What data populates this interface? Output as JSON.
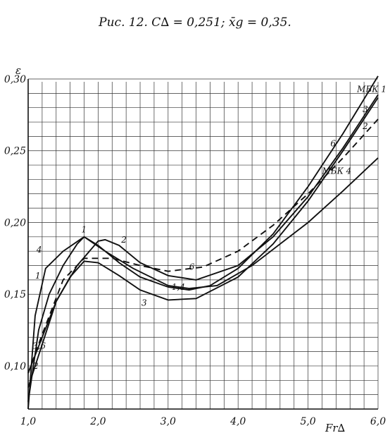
{
  "caption": "Рис. 12. C∆ = 0,251;  x̄g = 0,35.",
  "chart_data": {
    "type": "line",
    "xlabel": "Fr∆",
    "ylabel": "ε",
    "xlim": [
      1.0,
      6.0
    ],
    "ylim": [
      0.07,
      0.3
    ],
    "x_ticks": [
      1.0,
      2.0,
      3.0,
      4.0,
      5.0,
      6.0
    ],
    "x_tick_labels": [
      "1,0",
      "2,0",
      "3,0",
      "4,0",
      "5,0",
      "6,0"
    ],
    "y_ticks": [
      0.1,
      0.15,
      0.2,
      0.25,
      0.3
    ],
    "y_tick_labels": [
      "0,10",
      "0,15",
      "0,20",
      "0,25",
      "0,30"
    ],
    "grid": "on",
    "series": [
      {
        "name": "1",
        "dashed": false,
        "points": [
          [
            1.0,
            0.075
          ],
          [
            1.15,
            0.125
          ],
          [
            1.3,
            0.15
          ],
          [
            1.5,
            0.17
          ],
          [
            1.7,
            0.185
          ],
          [
            1.8,
            0.19
          ],
          [
            2.0,
            0.184
          ],
          [
            2.3,
            0.172
          ],
          [
            2.6,
            0.162
          ],
          [
            3.0,
            0.155
          ],
          [
            3.3,
            0.153
          ],
          [
            3.6,
            0.156
          ],
          [
            4.0,
            0.168
          ],
          [
            4.5,
            0.192
          ],
          [
            5.0,
            0.225
          ],
          [
            5.5,
            0.262
          ],
          [
            6.0,
            0.302
          ]
        ]
      },
      {
        "name": "2",
        "dashed": false,
        "points": [
          [
            1.0,
            0.085
          ],
          [
            1.2,
            0.115
          ],
          [
            1.4,
            0.145
          ],
          [
            1.7,
            0.17
          ],
          [
            2.0,
            0.187
          ],
          [
            2.1,
            0.188
          ],
          [
            2.3,
            0.184
          ],
          [
            2.6,
            0.172
          ],
          [
            3.0,
            0.163
          ],
          [
            3.4,
            0.16
          ],
          [
            4.0,
            0.17
          ],
          [
            4.5,
            0.19
          ],
          [
            5.0,
            0.218
          ],
          [
            5.5,
            0.252
          ],
          [
            6.0,
            0.289
          ]
        ]
      },
      {
        "name": "3",
        "dashed": false,
        "points": [
          [
            1.0,
            0.095
          ],
          [
            1.2,
            0.12
          ],
          [
            1.4,
            0.145
          ],
          [
            1.6,
            0.162
          ],
          [
            1.8,
            0.173
          ],
          [
            2.0,
            0.172
          ],
          [
            2.3,
            0.163
          ],
          [
            2.6,
            0.153
          ],
          [
            3.0,
            0.146
          ],
          [
            3.4,
            0.147
          ],
          [
            4.0,
            0.162
          ],
          [
            4.5,
            0.185
          ],
          [
            5.0,
            0.215
          ],
          [
            5.5,
            0.25
          ],
          [
            6.0,
            0.287
          ]
        ]
      },
      {
        "name": "4",
        "dashed": false,
        "points": [
          [
            1.0,
            0.07
          ],
          [
            1.1,
            0.135
          ],
          [
            1.25,
            0.168
          ],
          [
            1.5,
            0.18
          ],
          [
            1.8,
            0.19
          ],
          [
            2.1,
            0.18
          ],
          [
            2.5,
            0.168
          ],
          [
            3.0,
            0.156
          ],
          [
            3.3,
            0.154
          ],
          [
            3.7,
            0.156
          ],
          [
            4.2,
            0.17
          ],
          [
            4.6,
            0.185
          ],
          [
            5.0,
            0.2
          ],
          [
            5.5,
            0.222
          ],
          [
            6.0,
            0.245
          ]
        ]
      },
      {
        "name": "6",
        "dashed": true,
        "points": [
          [
            1.0,
            0.095
          ],
          [
            1.2,
            0.122
          ],
          [
            1.5,
            0.16
          ],
          [
            1.8,
            0.175
          ],
          [
            2.2,
            0.175
          ],
          [
            2.6,
            0.17
          ],
          [
            3.0,
            0.166
          ],
          [
            3.5,
            0.169
          ],
          [
            4.0,
            0.18
          ],
          [
            4.5,
            0.198
          ],
          [
            5.0,
            0.22
          ],
          [
            5.5,
            0.245
          ],
          [
            6.0,
            0.272
          ]
        ]
      }
    ],
    "annotations": [
      {
        "text": "1",
        "x": 1.76,
        "y": 0.193
      },
      {
        "text": "2",
        "x": 2.33,
        "y": 0.186
      },
      {
        "text": "4",
        "x": 1.12,
        "y": 0.179
      },
      {
        "text": "1",
        "x": 1.1,
        "y": 0.161
      },
      {
        "text": "3,6",
        "x": 1.06,
        "y": 0.112
      },
      {
        "text": "2",
        "x": 1.07,
        "y": 0.098
      },
      {
        "text": "6",
        "x": 3.3,
        "y": 0.167
      },
      {
        "text": "1,4",
        "x": 3.05,
        "y": 0.153
      },
      {
        "text": "3",
        "x": 2.62,
        "y": 0.142
      },
      {
        "text": "МБК 1",
        "x": 5.7,
        "y": 0.291
      },
      {
        "text": "3",
        "x": 5.78,
        "y": 0.277
      },
      {
        "text": "2",
        "x": 5.78,
        "y": 0.265
      },
      {
        "text": "6",
        "x": 5.32,
        "y": 0.253
      },
      {
        "text": "МБК 4",
        "x": 5.2,
        "y": 0.234
      }
    ]
  }
}
